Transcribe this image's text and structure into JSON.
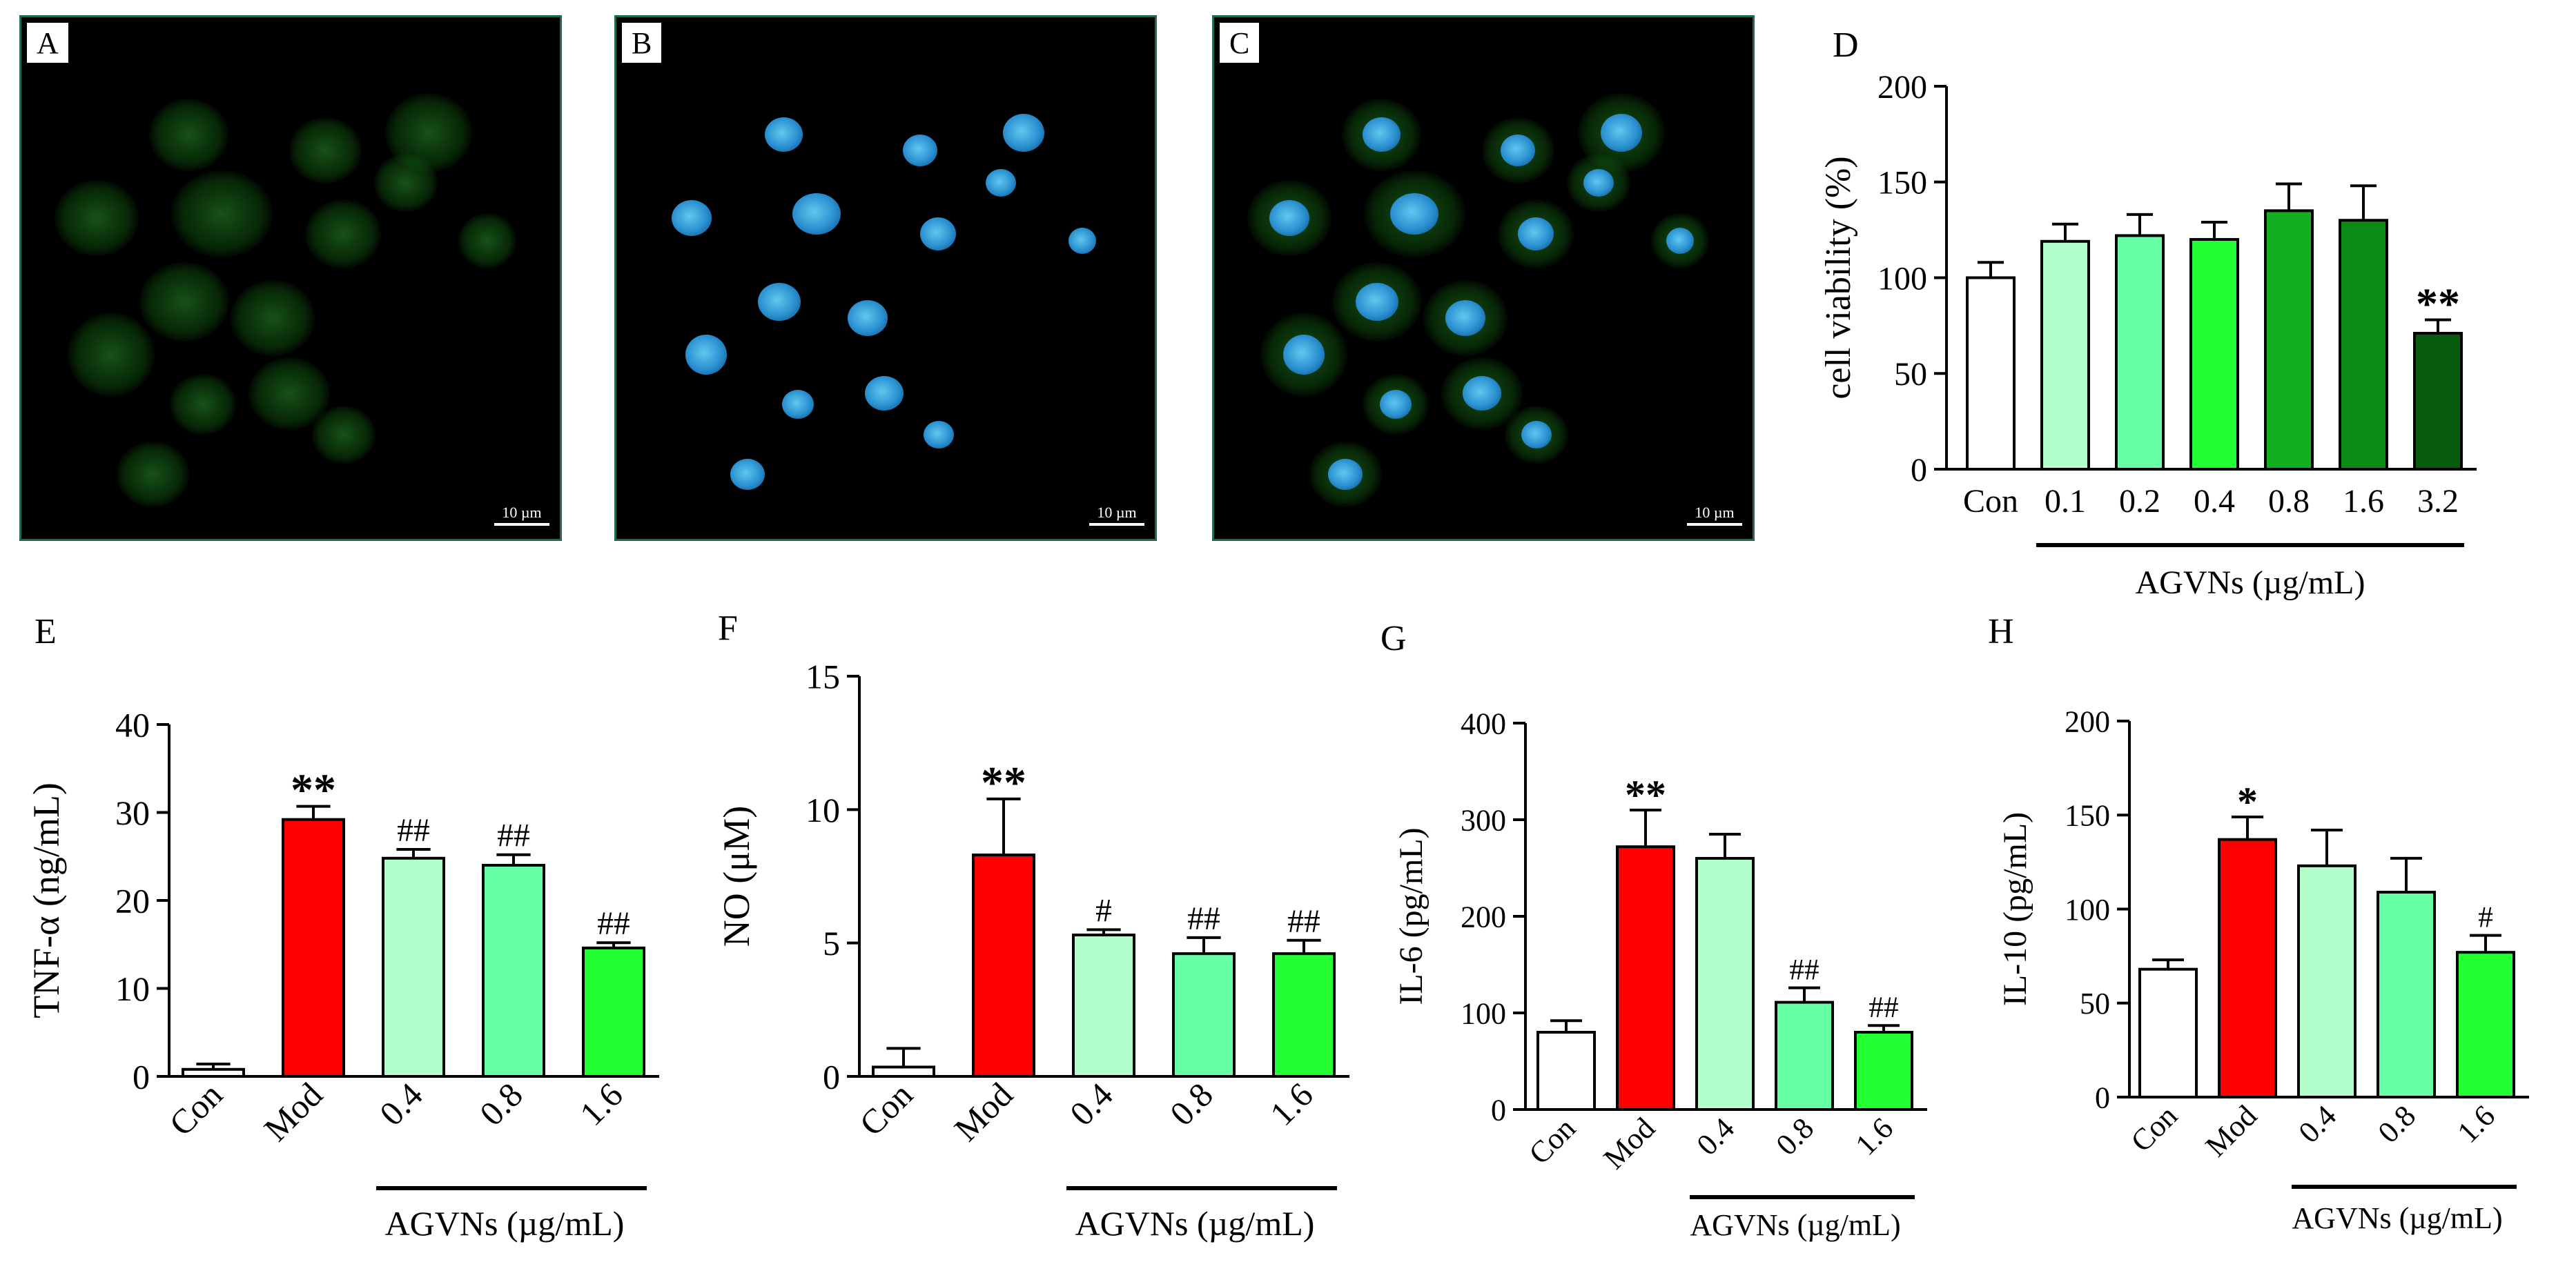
{
  "image_panels": [
    {
      "letter": "A",
      "scale": "10 µm",
      "stain": "green"
    },
    {
      "letter": "B",
      "scale": "10 µm",
      "stain": "blue"
    },
    {
      "letter": "C",
      "scale": "10 µm",
      "stain": "merge"
    }
  ],
  "colors": {
    "con": "#ffffff",
    "mod": "#ff0000",
    "c01": "#b3ffcc",
    "c02": "#66ffa6",
    "c04": "#22ff33",
    "c08": "#11b020",
    "c16": "#0b8a16",
    "c32": "#075c0f"
  },
  "chart_data": [
    {
      "panel": "D",
      "type": "bar",
      "categories": [
        "Con",
        "0.1",
        "0.2",
        "0.4",
        "0.8",
        "1.6",
        "3.2"
      ],
      "values": [
        100,
        119,
        122,
        120,
        135,
        130,
        71
      ],
      "errors": [
        8,
        9,
        11,
        9,
        14,
        18,
        7
      ],
      "annotations": [
        "",
        "",
        "",
        "",
        "",
        "",
        "**"
      ],
      "bar_colors": [
        "con",
        "c01",
        "c02",
        "c04",
        "c08",
        "c16",
        "c32"
      ],
      "ylabel": "cell viability (%)",
      "group_label": "AGVNs (µg/mL)",
      "ylim": [
        0,
        200
      ],
      "yticks": [
        0,
        50,
        100,
        150,
        200
      ],
      "rotated_ticks": false
    },
    {
      "panel": "E",
      "type": "bar",
      "categories": [
        "Con",
        "Mod",
        "0.4",
        "0.8",
        "1.6"
      ],
      "values": [
        0.8,
        29.2,
        24.8,
        24.0,
        14.6
      ],
      "errors": [
        0.6,
        1.5,
        1.0,
        1.2,
        0.6
      ],
      "annotations": [
        "",
        "**",
        "##",
        "##",
        "##"
      ],
      "bar_colors": [
        "con",
        "mod",
        "c01",
        "c02",
        "c04"
      ],
      "ylabel": "TNF-α (ng/mL)",
      "group_label": "AGVNs (µg/mL)",
      "ylim": [
        0,
        40
      ],
      "yticks": [
        0,
        10,
        20,
        30,
        40
      ],
      "rotated_ticks": true
    },
    {
      "panel": "F",
      "type": "bar",
      "categories": [
        "Con",
        "Mod",
        "0.4",
        "0.8",
        "1.6"
      ],
      "values": [
        0.35,
        8.3,
        5.3,
        4.6,
        4.6
      ],
      "errors": [
        0.7,
        2.1,
        0.2,
        0.6,
        0.5
      ],
      "annotations": [
        "",
        "**",
        "#",
        "##",
        "##"
      ],
      "bar_colors": [
        "con",
        "mod",
        "c01",
        "c02",
        "c04"
      ],
      "ylabel": "NO (μM)",
      "group_label": "AGVNs (µg/mL)",
      "ylim": [
        0,
        15
      ],
      "yticks": [
        0,
        5,
        10,
        15
      ],
      "rotated_ticks": true
    },
    {
      "panel": "G",
      "type": "bar",
      "categories": [
        "Con",
        "Mod",
        "0.4",
        "0.8",
        "1.6"
      ],
      "values": [
        80,
        272,
        260,
        111,
        80
      ],
      "errors": [
        12,
        38,
        25,
        15,
        7
      ],
      "annotations": [
        "",
        "**",
        "",
        "##",
        "##"
      ],
      "bar_colors": [
        "con",
        "mod",
        "c01",
        "c02",
        "c04"
      ],
      "ylabel": "IL-6 (pg/mL)",
      "group_label": "AGVNs (µg/mL)",
      "ylim": [
        0,
        400
      ],
      "yticks": [
        0,
        100,
        200,
        300,
        400
      ],
      "rotated_ticks": true
    },
    {
      "panel": "H",
      "type": "bar",
      "categories": [
        "Con",
        "Mod",
        "0.4",
        "0.8",
        "1.6"
      ],
      "values": [
        68,
        137,
        123,
        109,
        77
      ],
      "errors": [
        5,
        12,
        19,
        18,
        9
      ],
      "annotations": [
        "",
        "*",
        "",
        "",
        "#"
      ],
      "bar_colors": [
        "con",
        "mod",
        "c01",
        "c02",
        "c04"
      ],
      "ylabel": "IL-10 (pg/mL)",
      "group_label": "AGVNs (µg/mL)",
      "ylim": [
        0,
        200
      ],
      "yticks": [
        0,
        50,
        100,
        150,
        200
      ],
      "rotated_ticks": true
    }
  ]
}
